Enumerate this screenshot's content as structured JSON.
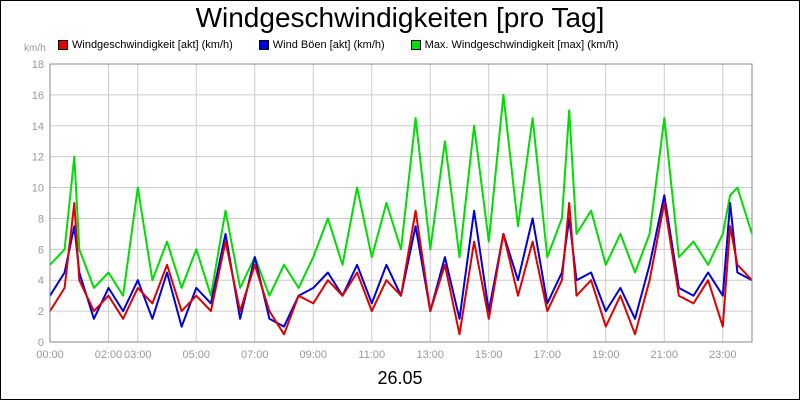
{
  "chart_data": {
    "type": "line",
    "title": "Windgeschwindigkeiten [pro Tag]",
    "ylabel": "km/h",
    "xlabel": "26.05",
    "ylim": [
      0,
      18
    ],
    "yticks": [
      "0",
      "2",
      "4",
      "6",
      "8",
      "10",
      "12",
      "14",
      "16",
      "18"
    ],
    "xticks": [
      "00:00",
      "02:00",
      "03:00",
      "05:00",
      "07:00",
      "09:00",
      "11:00",
      "13:00",
      "15:00",
      "17:00",
      "19:00",
      "21:00",
      "23:00"
    ],
    "xtick_hours": [
      0,
      2,
      3,
      5,
      7,
      9,
      11,
      13,
      15,
      17,
      19,
      21,
      23
    ],
    "x_range_hours": [
      0,
      24
    ],
    "grid": true,
    "legend_placement": "top",
    "series": [
      {
        "name": "Windgeschwindigkeit [akt] (km/h)",
        "color": "#e00000",
        "hours": [
          0,
          0.5,
          0.83,
          1,
          1.5,
          2,
          2.5,
          3,
          3.5,
          4,
          4.5,
          5,
          5.5,
          6,
          6.5,
          7,
          7.5,
          8,
          8.5,
          9,
          9.5,
          10,
          10.5,
          11,
          11.5,
          12,
          12.5,
          13,
          13.5,
          14,
          14.5,
          15,
          15.5,
          16,
          16.5,
          17,
          17.5,
          17.75,
          18,
          18.5,
          19,
          19.5,
          20,
          20.5,
          21,
          21.5,
          22,
          22.5,
          23,
          23.25,
          23.5,
          24
        ],
        "values": [
          2,
          3.5,
          9,
          4,
          2,
          3,
          1.5,
          3.5,
          2.5,
          5,
          2,
          3,
          2,
          6.5,
          2,
          5,
          2,
          0.5,
          3,
          2.5,
          4,
          3,
          4.5,
          2,
          4,
          3,
          8.5,
          2,
          5,
          0.5,
          6.5,
          1.5,
          7,
          3,
          6.5,
          2,
          4,
          9,
          3,
          4,
          1,
          3,
          0.5,
          4,
          9,
          3,
          2.5,
          4,
          1,
          7.5,
          5,
          4
        ]
      },
      {
        "name": "Wind Böen [akt] (km/h)",
        "color": "#0000e0",
        "hours": [
          0,
          0.5,
          0.83,
          1,
          1.5,
          2,
          2.5,
          3,
          3.5,
          4,
          4.5,
          5,
          5.5,
          6,
          6.5,
          7,
          7.5,
          8,
          8.5,
          9,
          9.5,
          10,
          10.5,
          11,
          11.5,
          12,
          12.5,
          13,
          13.5,
          14,
          14.5,
          15,
          15.5,
          16,
          16.5,
          17,
          17.5,
          17.75,
          18,
          18.5,
          19,
          19.5,
          20,
          20.5,
          21,
          21.5,
          22,
          22.5,
          23,
          23.25,
          23.5,
          24
        ],
        "values": [
          3,
          4.5,
          7.5,
          4.5,
          1.5,
          3.5,
          2,
          4,
          1.5,
          4.5,
          1,
          3.5,
          2.5,
          7,
          1.5,
          5.5,
          1.5,
          1,
          3,
          3.5,
          4.5,
          3,
          5,
          2.5,
          5,
          3,
          7.5,
          2,
          5.5,
          1.5,
          8.5,
          2,
          7,
          4,
          8,
          2.5,
          4.5,
          8,
          4,
          4.5,
          2,
          3.5,
          1.5,
          5,
          9.5,
          3.5,
          3,
          4.5,
          3,
          9,
          4.5,
          4
        ]
      },
      {
        "name": "Max. Windgeschwindigkeit [max] (km/h)",
        "color": "#00dd00",
        "hours": [
          0,
          0.5,
          0.83,
          1,
          1.5,
          2,
          2.5,
          3,
          3.5,
          4,
          4.5,
          5,
          5.5,
          6,
          6.5,
          7,
          7.5,
          8,
          8.5,
          9,
          9.5,
          10,
          10.5,
          11,
          11.5,
          12,
          12.5,
          13,
          13.5,
          14,
          14.5,
          15,
          15.5,
          16,
          16.5,
          17,
          17.5,
          17.75,
          18,
          18.5,
          19,
          19.5,
          20,
          20.5,
          21,
          21.5,
          22,
          22.5,
          23,
          23.25,
          23.5,
          24
        ],
        "values": [
          5,
          6,
          12,
          6,
          3.5,
          4.5,
          3,
          10,
          4,
          6.5,
          3.5,
          6,
          3,
          8.5,
          3.5,
          5.5,
          3,
          5,
          3.5,
          5.5,
          8,
          5,
          10,
          5.5,
          9,
          6,
          14.5,
          6,
          13,
          5.5,
          14,
          6.5,
          16,
          7.5,
          14.5,
          5.5,
          8,
          15,
          7,
          8.5,
          5,
          7,
          4.5,
          7,
          14.5,
          5.5,
          6.5,
          5,
          7,
          9.5,
          10,
          7
        ]
      }
    ]
  }
}
